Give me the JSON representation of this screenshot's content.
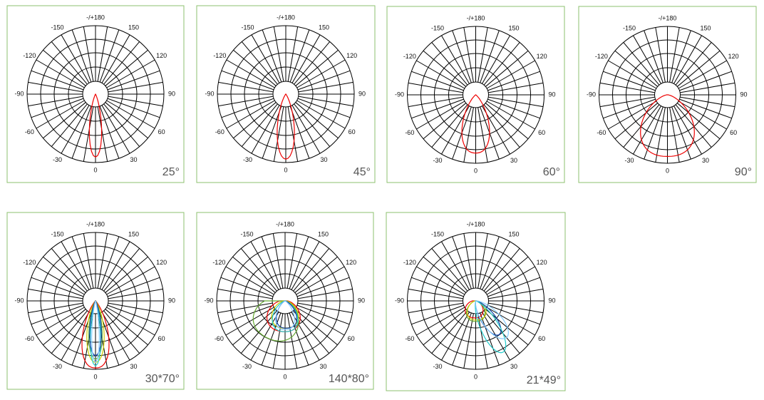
{
  "angle_labels": [
    "-/+180",
    "150",
    "120",
    "90",
    "60",
    "30",
    "0",
    "-30",
    "-60",
    "-90",
    "-120",
    "-150"
  ],
  "panels": [
    {
      "caption": "25°"
    },
    {
      "caption": "45°"
    },
    {
      "caption": "60°"
    },
    {
      "caption": "90°"
    },
    {
      "caption": "30*70°"
    },
    {
      "caption": "140*80°"
    },
    {
      "caption": "21*49°"
    }
  ]
}
